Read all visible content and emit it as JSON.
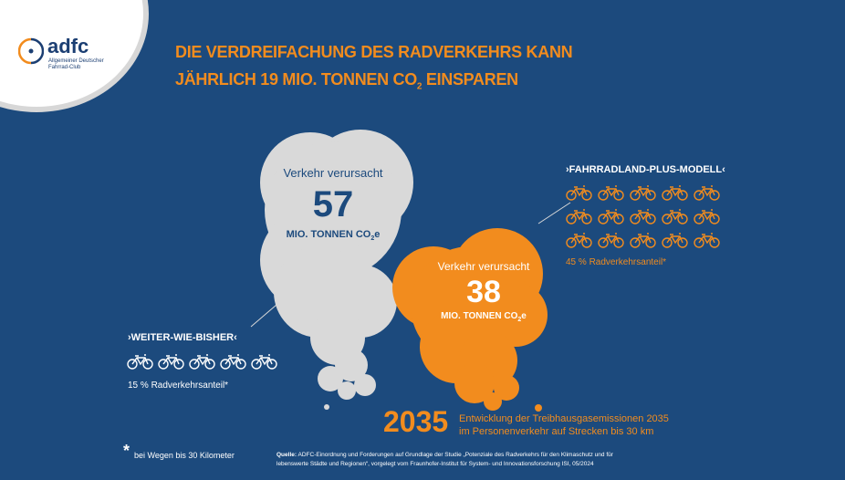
{
  "logo": {
    "name": "adfc",
    "subtitle_line1": "Allgemeiner Deutscher",
    "subtitle_line2": "Fahrrad-Club"
  },
  "title": {
    "line1": "DIE VERDREIFACHUNG DES RADVERKEHRS KANN",
    "line2_pre": "JÄHRLICH 19 MIO. TONNEN CO",
    "line2_sub": "2",
    "line2_post": " EINSPAREN"
  },
  "gray_cloud": {
    "label": "Verkehr verursacht",
    "value": "57",
    "unit_pre": "MIO. TONNEN CO",
    "unit_sub": "2",
    "unit_post": "e"
  },
  "orange_cloud": {
    "label": "Verkehr verursacht",
    "value": "38",
    "unit_pre": "MIO. TONNEN CO",
    "unit_sub": "2",
    "unit_post": "e"
  },
  "scenario_plus": {
    "title": "›FAHRRADLAND-PLUS-MODELL‹",
    "share": "45 % Radverkehrsanteil*",
    "bikes": 15
  },
  "scenario_base": {
    "title": "›WEITER-WIE-BISHER‹",
    "share": "15 % Radverkehrsanteil*",
    "bikes": 5
  },
  "year": {
    "value": "2035",
    "desc_line1": "Entwicklung der Treibhausgasemissionen 2035",
    "desc_line2": "im Personenverkehr auf Strecken bis 30 km"
  },
  "footnote": {
    "mark": "*",
    "text": "bei Wegen bis 30 Kilometer"
  },
  "source": {
    "label": "Quelle:",
    "line1": "ADFC-Einordnung und Forderungen auf Grundlage der Studie „Potenziale des Radverkehrs für den Klimaschutz und für",
    "line2": "lebenswerte Städte und Regionen“, vorgelegt vom Fraunhofer-Institut für System- und Innovationsforschung ISI, 05/2024"
  },
  "colors": {
    "background": "#1c4a7d",
    "orange": "#f28c1e",
    "gray": "#d9d9d9",
    "white": "#ffffff"
  }
}
